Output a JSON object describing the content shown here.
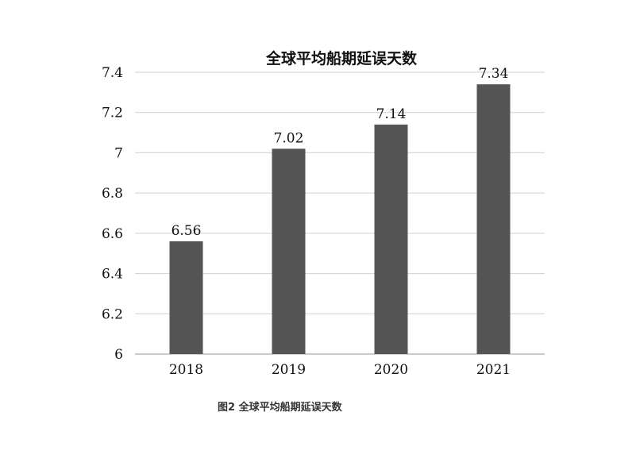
{
  "chart_data": {
    "type": "bar",
    "title": "全球平均船期延误天数",
    "categories": [
      "2018",
      "2019",
      "2020",
      "2021"
    ],
    "values": [
      6.56,
      7.02,
      7.14,
      7.34
    ],
    "data_labels": [
      "6.56",
      "7.02",
      "7.14",
      "7.34"
    ],
    "ylim": [
      6,
      7.4
    ],
    "yticks": [
      6,
      6.2,
      6.4,
      6.6,
      6.8,
      7,
      7.2,
      7.4
    ],
    "ytick_labels": [
      "6",
      "6.2",
      "6.4",
      "6.6",
      "6.8",
      "7",
      "7.2",
      "7.4"
    ],
    "grid": true,
    "bar_color": "#555555",
    "grid_color": "#d0d0d0"
  },
  "caption": "图2 全球平均船期延误天数"
}
